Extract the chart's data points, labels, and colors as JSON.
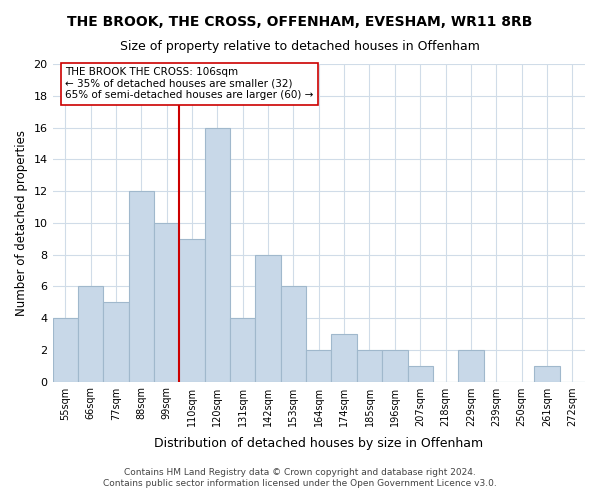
{
  "title": "THE BROOK, THE CROSS, OFFENHAM, EVESHAM, WR11 8RB",
  "subtitle": "Size of property relative to detached houses in Offenham",
  "xlabel": "Distribution of detached houses by size in Offenham",
  "ylabel": "Number of detached properties",
  "bin_labels": [
    "55sqm",
    "66sqm",
    "77sqm",
    "88sqm",
    "99sqm",
    "110sqm",
    "120sqm",
    "131sqm",
    "142sqm",
    "153sqm",
    "164sqm",
    "174sqm",
    "185sqm",
    "196sqm",
    "207sqm",
    "218sqm",
    "229sqm",
    "239sqm",
    "250sqm",
    "261sqm",
    "272sqm"
  ],
  "bar_heights": [
    4,
    6,
    5,
    12,
    10,
    9,
    16,
    4,
    8,
    6,
    2,
    3,
    2,
    2,
    1,
    0,
    2,
    0,
    0,
    1,
    0
  ],
  "bar_color": "#c8d8e8",
  "bar_edge_color": "#a0b8cc",
  "property_line_x": 5.0,
  "property_line_color": "#cc0000",
  "annotation_text": "THE BROOK THE CROSS: 106sqm\n← 35% of detached houses are smaller (32)\n65% of semi-detached houses are larger (60) →",
  "annotation_box_color": "#ffffff",
  "annotation_box_edge": "#cc0000",
  "ylim": [
    0,
    20
  ],
  "yticks": [
    0,
    2,
    4,
    6,
    8,
    10,
    12,
    14,
    16,
    18,
    20
  ],
  "footer_line1": "Contains HM Land Registry data © Crown copyright and database right 2024.",
  "footer_line2": "Contains public sector information licensed under the Open Government Licence v3.0.",
  "background_color": "#ffffff",
  "grid_color": "#d0dce8"
}
